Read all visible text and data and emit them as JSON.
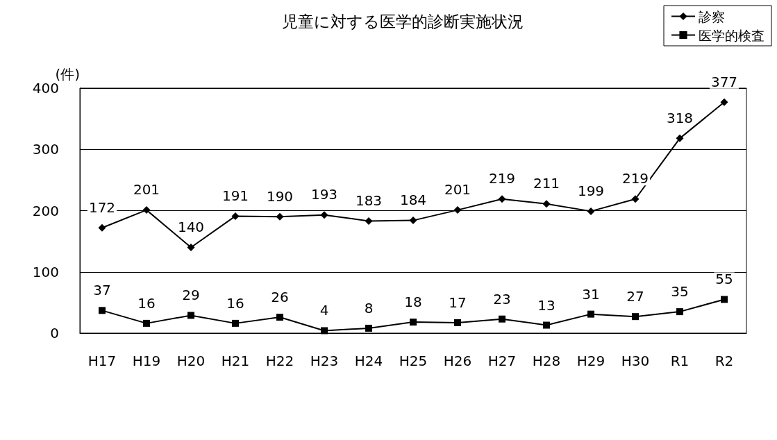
{
  "chart_data": {
    "type": "line",
    "title": "児童に対する医学的診断実施状況",
    "ylabel": "(件)",
    "categories": [
      "H17",
      "H19",
      "H20",
      "H21",
      "H22",
      "H23",
      "H24",
      "H25",
      "H26",
      "H27",
      "H28",
      "H29",
      "H30",
      "R1",
      "R2"
    ],
    "series": [
      {
        "name": "診察",
        "color": "#000000",
        "marker": "diamond",
        "values": [
          172,
          201,
          140,
          191,
          190,
          193,
          183,
          184,
          201,
          219,
          211,
          199,
          219,
          318,
          377
        ]
      },
      {
        "name": "医学的検査",
        "color": "#000000",
        "marker": "square",
        "values": [
          37,
          16,
          29,
          16,
          26,
          4,
          8,
          18,
          17,
          23,
          13,
          31,
          27,
          35,
          55
        ]
      }
    ],
    "ylim": [
      0,
      400
    ],
    "yticks": [
      0,
      100,
      200,
      300,
      400
    ],
    "grid": "y",
    "legend": "top right",
    "data_labels": true,
    "line_style": "solid"
  }
}
